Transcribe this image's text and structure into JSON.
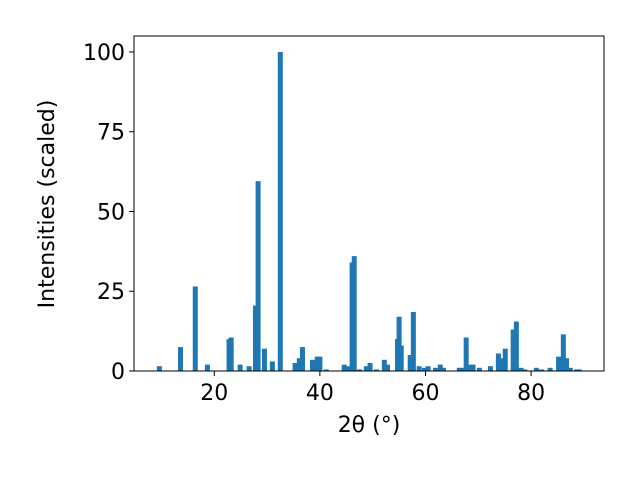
{
  "chart_data": {
    "type": "bar",
    "xlabel": "2θ (°)",
    "ylabel": "Intensities (scaled)",
    "x": [
      9.6,
      13.6,
      16.4,
      18.7,
      22.8,
      23.2,
      24.9,
      26.6,
      27.8,
      28.3,
      29.5,
      31.0,
      32.5,
      35.3,
      36.1,
      36.7,
      38.6,
      39.5,
      40.0,
      41.2,
      44.6,
      45.4,
      46.1,
      46.5,
      47.5,
      48.8,
      49.5,
      50.7,
      52.2,
      52.8,
      54.7,
      55.0,
      55.4,
      57.1,
      57.7,
      58.8,
      59.8,
      60.5,
      61.9,
      62.8,
      63.4,
      66.4,
      67.0,
      67.7,
      68.3,
      69.0,
      70.2,
      72.3,
      73.8,
      74.4,
      75.1,
      76.6,
      77.2,
      78.1,
      78.8,
      81.0,
      82.0,
      83.6,
      85.2,
      86.1,
      86.7,
      87.4,
      88.6,
      89.1
    ],
    "values": [
      1.5,
      7.5,
      26.5,
      2,
      10,
      10.5,
      2,
      1.5,
      20.5,
      59.5,
      7,
      3,
      100,
      2.5,
      4,
      7.5,
      3.5,
      4.5,
      4.5,
      0.5,
      2,
      1.5,
      34,
      36,
      0.5,
      1.5,
      2.5,
      0.5,
      3.5,
      2,
      10,
      17,
      8,
      5,
      18.5,
      1.5,
      1,
      1.5,
      1,
      2,
      1,
      1,
      1,
      10.5,
      2,
      2,
      1,
      1.5,
      5.5,
      4,
      7,
      13,
      15.5,
      1,
      0.5,
      1,
      0.5,
      1,
      4.5,
      11.5,
      4,
      1,
      0.5,
      0.5
    ],
    "color": "#1f77b4",
    "xlim": [
      4.8,
      93.8
    ],
    "xticks": [
      20,
      40,
      60,
      80
    ],
    "ylim": [
      0,
      105
    ],
    "yticks": [
      0,
      25,
      50,
      75,
      100
    ],
    "grid": false
  }
}
